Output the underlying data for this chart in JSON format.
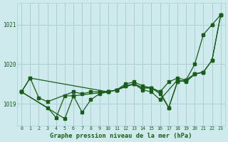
{
  "title": "Graphe pression niveau de la mer (hPa)",
  "background_color": "#ceeaed",
  "grid_color": "#aacfd4",
  "line_color": "#1a5c1a",
  "text_color": "#1a5c1a",
  "xlim": [
    -0.5,
    23.5
  ],
  "ylim": [
    1018.45,
    1021.55
  ],
  "yticks": [
    1019,
    1020,
    1021
  ],
  "xticks": [
    0,
    1,
    2,
    3,
    4,
    5,
    6,
    7,
    8,
    9,
    10,
    11,
    12,
    13,
    14,
    15,
    16,
    17,
    18,
    19,
    20,
    21,
    22,
    23
  ],
  "series1_x": [
    0,
    1,
    10,
    11,
    12,
    13,
    14,
    15,
    16,
    17,
    18,
    19,
    20,
    21,
    22,
    23
  ],
  "series1_y": [
    1019.3,
    1019.65,
    1019.3,
    1019.35,
    1019.45,
    1019.5,
    1019.4,
    1019.4,
    1019.25,
    1018.9,
    1019.55,
    1019.6,
    1020.0,
    1020.75,
    1021.0,
    1021.25
  ],
  "series2_x": [
    0,
    1,
    2,
    3,
    6,
    7,
    8,
    9,
    10,
    11,
    12,
    13,
    14,
    15,
    16,
    17,
    18,
    19,
    20,
    21
  ],
  "series2_y": [
    1019.3,
    1019.65,
    1019.15,
    1019.05,
    1019.3,
    1019.25,
    1019.3,
    1019.3,
    1019.3,
    1019.35,
    1019.45,
    1019.5,
    1019.4,
    1019.4,
    1019.3,
    1018.9,
    1019.55,
    1019.6,
    1019.75,
    1019.8
  ],
  "series3_x": [
    0,
    3,
    4,
    5,
    6,
    10,
    11,
    13,
    14,
    15,
    16,
    18,
    19,
    20,
    21,
    22,
    23
  ],
  "series3_y": [
    1019.3,
    1018.9,
    1018.65,
    1019.2,
    1019.2,
    1019.3,
    1019.35,
    1019.5,
    1019.35,
    1019.3,
    1019.1,
    1019.6,
    1019.55,
    1019.75,
    1019.8,
    1020.1,
    1021.25
  ],
  "series4_x": [
    0,
    5,
    6,
    7,
    8,
    9,
    10,
    11,
    12,
    13,
    14,
    15,
    16,
    17,
    18,
    19,
    20,
    21,
    22,
    23
  ],
  "series4_y": [
    1019.3,
    1018.62,
    1019.2,
    1018.78,
    1019.1,
    1019.25,
    1019.3,
    1019.35,
    1019.5,
    1019.55,
    1019.45,
    1019.4,
    1019.3,
    1019.55,
    1019.65,
    1019.6,
    1019.75,
    1019.8,
    1020.1,
    1021.25
  ]
}
